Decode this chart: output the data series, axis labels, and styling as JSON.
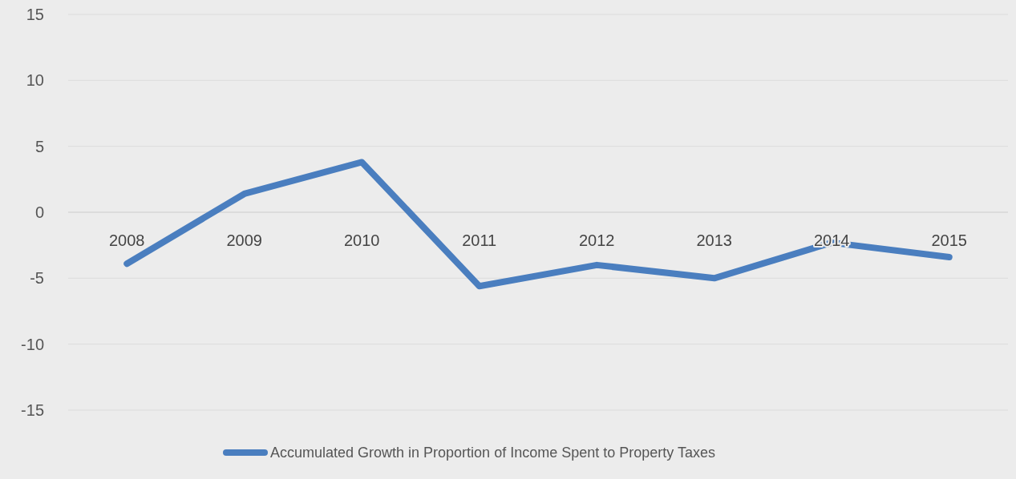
{
  "chart_data": {
    "type": "line",
    "categories": [
      "2008",
      "2009",
      "2010",
      "2011",
      "2012",
      "2013",
      "2014",
      "2015"
    ],
    "series": [
      {
        "name": "Accumulated Growth in Proportion of Income Spent to Property Taxes",
        "color": "#4a7ebf",
        "values": [
          -3.9,
          1.4,
          3.8,
          -5.6,
          -4.0,
          -5.0,
          -2.3,
          -3.4
        ]
      }
    ],
    "ylim": [
      -15,
      15
    ],
    "yticks": [
      -15,
      -10,
      -5,
      0,
      5,
      10,
      15
    ],
    "grid": "y",
    "legend": "bottom",
    "marker": "none",
    "line_style": "solid"
  }
}
